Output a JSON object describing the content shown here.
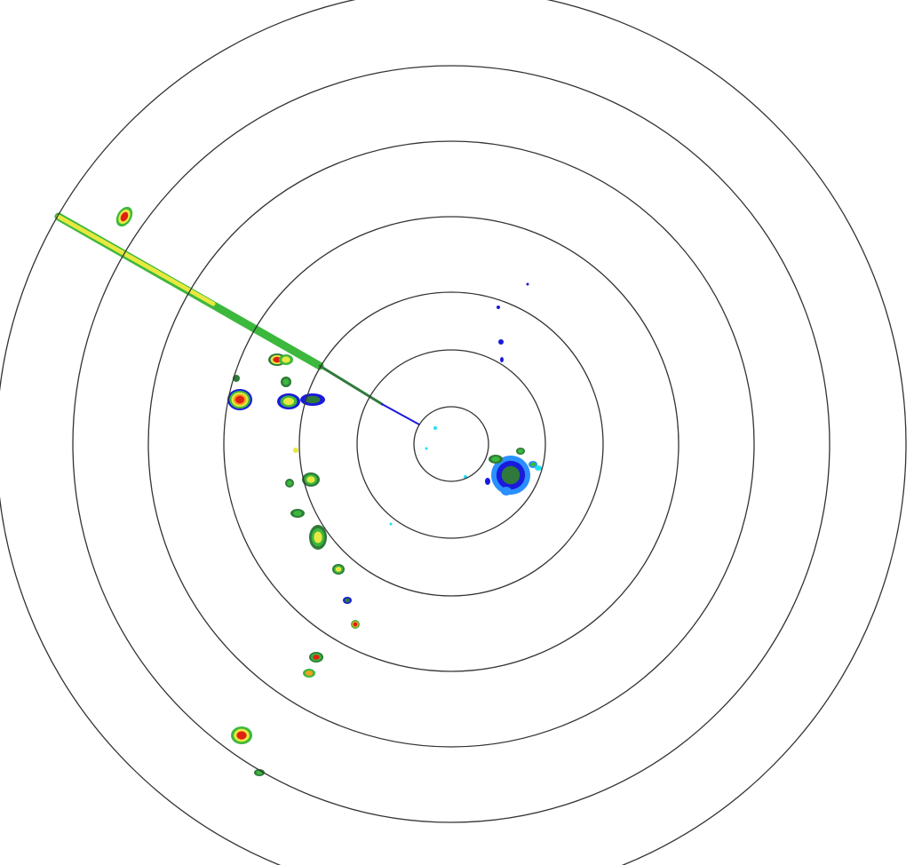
{
  "display": {
    "type": "radar-ppi",
    "range_ring_count": 7,
    "colors": {
      "background": "#ffffff",
      "ring": "#333333",
      "echo_weak": "#1a1adc",
      "echo_light": "#2a8fff",
      "echo_cyan": "#22e0f0",
      "echo_dark_green": "#2f7a3a",
      "echo_green": "#3cb83c",
      "echo_yellow": "#e8e840",
      "echo_orange": "#f0a020",
      "echo_red": "#e02010"
    }
  }
}
